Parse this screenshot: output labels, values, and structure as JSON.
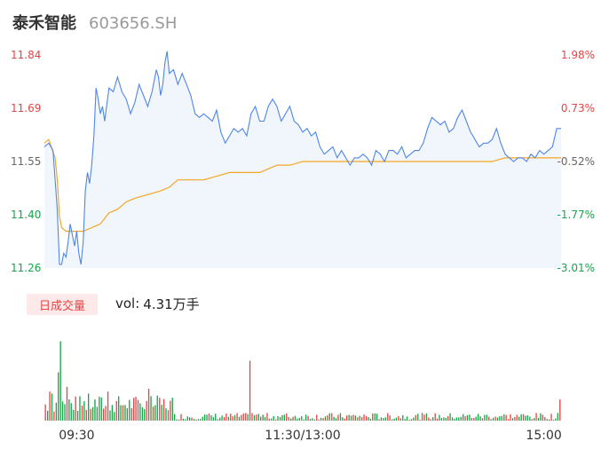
{
  "header": {
    "name": "泰禾智能",
    "code": "603656.SH"
  },
  "volume_panel": {
    "badge": "日成交量",
    "vol_prefix": "vol:",
    "vol_value": "4.31万手"
  },
  "colors": {
    "up": "#e64545",
    "down": "#1aa34a",
    "neutral": "#666666",
    "price_line": "#4f86e6",
    "avg_line": "#f5a623",
    "fill": "#f1f5fc"
  },
  "chart_data": {
    "type": "line",
    "price_ticks": [
      "11.84",
      "11.69",
      "11.55",
      "11.40",
      "11.26"
    ],
    "pct_ticks": [
      "1.98%",
      "0.73%",
      "-0.52%",
      "-1.77%",
      "-3.01%"
    ],
    "ylim": [
      11.26,
      11.84
    ],
    "x_ticks": [
      "09:30",
      "11:30/13:00",
      "15:00"
    ],
    "minutes": 240,
    "series": [
      {
        "role": "price",
        "keypoints": [
          [
            0,
            11.59
          ],
          [
            2,
            11.6
          ],
          [
            4,
            11.58
          ],
          [
            6,
            11.42
          ],
          [
            7,
            11.27
          ],
          [
            8,
            11.27
          ],
          [
            9,
            11.3
          ],
          [
            10,
            11.29
          ],
          [
            11,
            11.33
          ],
          [
            12,
            11.38
          ],
          [
            13,
            11.35
          ],
          [
            14,
            11.32
          ],
          [
            15,
            11.36
          ],
          [
            16,
            11.3
          ],
          [
            17,
            11.27
          ],
          [
            18,
            11.33
          ],
          [
            19,
            11.47
          ],
          [
            20,
            11.52
          ],
          [
            21,
            11.49
          ],
          [
            22,
            11.54
          ],
          [
            23,
            11.62
          ],
          [
            24,
            11.75
          ],
          [
            25,
            11.72
          ],
          [
            26,
            11.68
          ],
          [
            27,
            11.7
          ],
          [
            28,
            11.66
          ],
          [
            30,
            11.75
          ],
          [
            32,
            11.74
          ],
          [
            34,
            11.78
          ],
          [
            36,
            11.74
          ],
          [
            38,
            11.72
          ],
          [
            40,
            11.68
          ],
          [
            42,
            11.71
          ],
          [
            44,
            11.76
          ],
          [
            46,
            11.73
          ],
          [
            48,
            11.7
          ],
          [
            50,
            11.74
          ],
          [
            52,
            11.8
          ],
          [
            53,
            11.78
          ],
          [
            54,
            11.73
          ],
          [
            55,
            11.76
          ],
          [
            56,
            11.82
          ],
          [
            57,
            11.85
          ],
          [
            58,
            11.79
          ],
          [
            60,
            11.8
          ],
          [
            62,
            11.76
          ],
          [
            64,
            11.79
          ],
          [
            66,
            11.76
          ],
          [
            68,
            11.73
          ],
          [
            70,
            11.68
          ],
          [
            72,
            11.67
          ],
          [
            74,
            11.68
          ],
          [
            76,
            11.67
          ],
          [
            78,
            11.66
          ],
          [
            80,
            11.69
          ],
          [
            82,
            11.63
          ],
          [
            84,
            11.6
          ],
          [
            86,
            11.62
          ],
          [
            88,
            11.64
          ],
          [
            90,
            11.63
          ],
          [
            92,
            11.64
          ],
          [
            94,
            11.62
          ],
          [
            96,
            11.68
          ],
          [
            98,
            11.7
          ],
          [
            100,
            11.66
          ],
          [
            102,
            11.66
          ],
          [
            104,
            11.7
          ],
          [
            106,
            11.72
          ],
          [
            108,
            11.7
          ],
          [
            110,
            11.66
          ],
          [
            112,
            11.68
          ],
          [
            114,
            11.7
          ],
          [
            116,
            11.66
          ],
          [
            118,
            11.65
          ],
          [
            120,
            11.63
          ],
          [
            122,
            11.64
          ],
          [
            124,
            11.62
          ],
          [
            126,
            11.63
          ],
          [
            128,
            11.59
          ],
          [
            130,
            11.57
          ],
          [
            132,
            11.58
          ],
          [
            134,
            11.59
          ],
          [
            136,
            11.56
          ],
          [
            138,
            11.58
          ],
          [
            140,
            11.56
          ],
          [
            142,
            11.54
          ],
          [
            144,
            11.56
          ],
          [
            146,
            11.56
          ],
          [
            148,
            11.57
          ],
          [
            150,
            11.56
          ],
          [
            152,
            11.54
          ],
          [
            154,
            11.58
          ],
          [
            156,
            11.57
          ],
          [
            158,
            11.55
          ],
          [
            160,
            11.58
          ],
          [
            162,
            11.58
          ],
          [
            164,
            11.57
          ],
          [
            166,
            11.59
          ],
          [
            168,
            11.56
          ],
          [
            170,
            11.57
          ],
          [
            172,
            11.58
          ],
          [
            174,
            11.58
          ],
          [
            176,
            11.6
          ],
          [
            178,
            11.64
          ],
          [
            180,
            11.67
          ],
          [
            182,
            11.66
          ],
          [
            184,
            11.65
          ],
          [
            186,
            11.66
          ],
          [
            188,
            11.63
          ],
          [
            190,
            11.64
          ],
          [
            192,
            11.67
          ],
          [
            194,
            11.69
          ],
          [
            196,
            11.66
          ],
          [
            198,
            11.63
          ],
          [
            200,
            11.61
          ],
          [
            202,
            11.59
          ],
          [
            204,
            11.6
          ],
          [
            206,
            11.6
          ],
          [
            208,
            11.61
          ],
          [
            210,
            11.64
          ],
          [
            212,
            11.6
          ],
          [
            214,
            11.57
          ],
          [
            216,
            11.56
          ],
          [
            218,
            11.55
          ],
          [
            220,
            11.56
          ],
          [
            222,
            11.56
          ],
          [
            224,
            11.55
          ],
          [
            226,
            11.57
          ],
          [
            228,
            11.56
          ],
          [
            230,
            11.58
          ],
          [
            232,
            11.57
          ],
          [
            234,
            11.58
          ],
          [
            236,
            11.59
          ],
          [
            238,
            11.64
          ],
          [
            240,
            11.64
          ]
        ]
      },
      {
        "role": "average",
        "keypoints": [
          [
            0,
            11.6
          ],
          [
            2,
            11.61
          ],
          [
            5,
            11.56
          ],
          [
            6,
            11.5
          ],
          [
            7,
            11.4
          ],
          [
            8,
            11.37
          ],
          [
            10,
            11.36
          ],
          [
            14,
            11.36
          ],
          [
            18,
            11.36
          ],
          [
            22,
            11.37
          ],
          [
            26,
            11.38
          ],
          [
            30,
            11.41
          ],
          [
            34,
            11.42
          ],
          [
            38,
            11.44
          ],
          [
            42,
            11.45
          ],
          [
            48,
            11.46
          ],
          [
            54,
            11.47
          ],
          [
            58,
            11.48
          ],
          [
            62,
            11.5
          ],
          [
            68,
            11.5
          ],
          [
            74,
            11.5
          ],
          [
            80,
            11.51
          ],
          [
            86,
            11.52
          ],
          [
            92,
            11.52
          ],
          [
            100,
            11.52
          ],
          [
            104,
            11.53
          ],
          [
            108,
            11.54
          ],
          [
            114,
            11.54
          ],
          [
            120,
            11.55
          ],
          [
            128,
            11.55
          ],
          [
            136,
            11.55
          ],
          [
            144,
            11.55
          ],
          [
            152,
            11.55
          ],
          [
            160,
            11.55
          ],
          [
            168,
            11.55
          ],
          [
            176,
            11.55
          ],
          [
            184,
            11.55
          ],
          [
            192,
            11.55
          ],
          [
            200,
            11.55
          ],
          [
            208,
            11.55
          ],
          [
            214,
            11.56
          ],
          [
            220,
            11.56
          ],
          [
            230,
            11.56
          ],
          [
            240,
            11.56
          ]
        ]
      }
    ],
    "volume": {
      "max_bars_seed": 7,
      "peaks": [
        [
          7,
          0.82,
          "down"
        ],
        [
          6,
          0.5,
          "down"
        ],
        [
          2,
          0.3,
          "up"
        ],
        [
          3,
          0.28,
          "down"
        ],
        [
          10,
          0.35,
          "up"
        ],
        [
          11,
          0.22,
          "down"
        ],
        [
          20,
          0.28,
          "down"
        ],
        [
          29,
          0.3,
          "up"
        ],
        [
          48,
          0.33,
          "up"
        ],
        [
          95,
          0.62,
          "up"
        ],
        [
          99,
          0.07,
          "down"
        ],
        [
          239,
          0.22,
          "up"
        ]
      ]
    }
  }
}
